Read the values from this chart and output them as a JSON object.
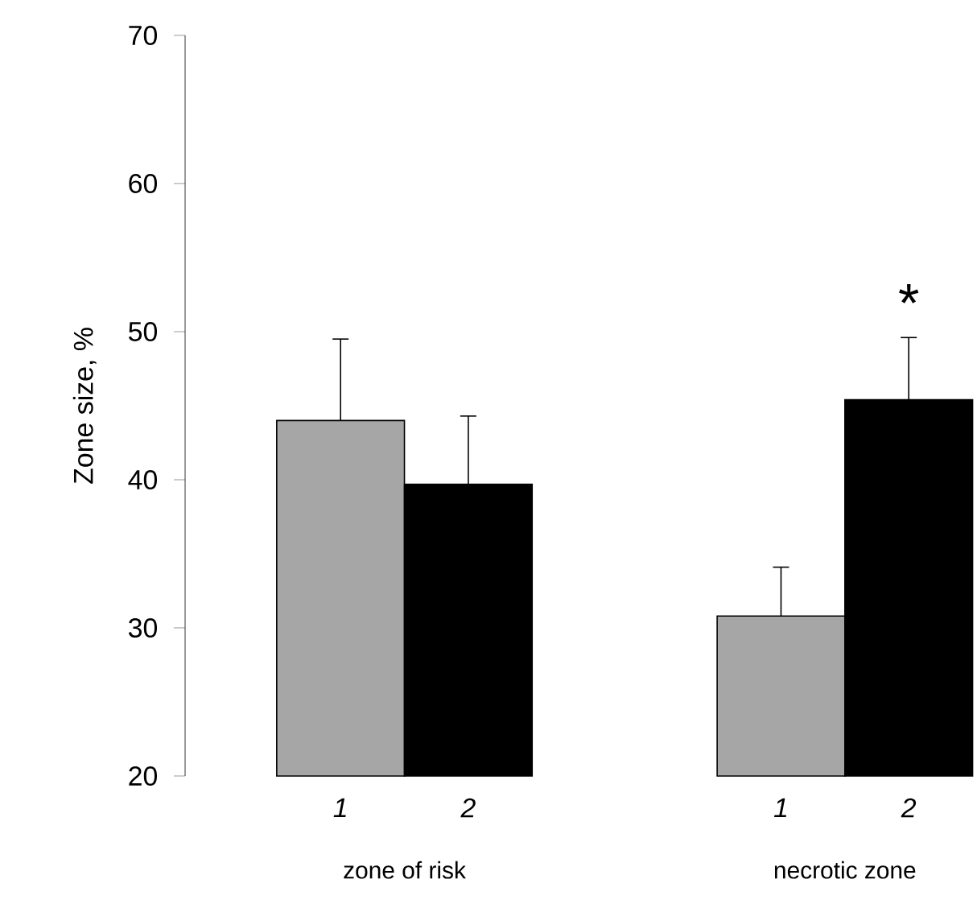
{
  "chart_data": {
    "type": "bar",
    "ylabel": "Zone size, %",
    "categories": [
      "zone of risk",
      "necrotic zone"
    ],
    "series": [
      {
        "name": "1",
        "color": "#a6a6a6",
        "values": [
          44.0,
          30.8
        ],
        "errors": [
          5.5,
          3.3
        ]
      },
      {
        "name": "2",
        "color": "#000000",
        "values": [
          39.7,
          45.4
        ],
        "errors": [
          4.6,
          4.2
        ]
      }
    ],
    "ylim": [
      20,
      70
    ],
    "yticks": [
      20,
      30,
      40,
      50,
      60,
      70
    ],
    "annotations": [
      "*"
    ],
    "grid": false,
    "legend": "bottom"
  }
}
